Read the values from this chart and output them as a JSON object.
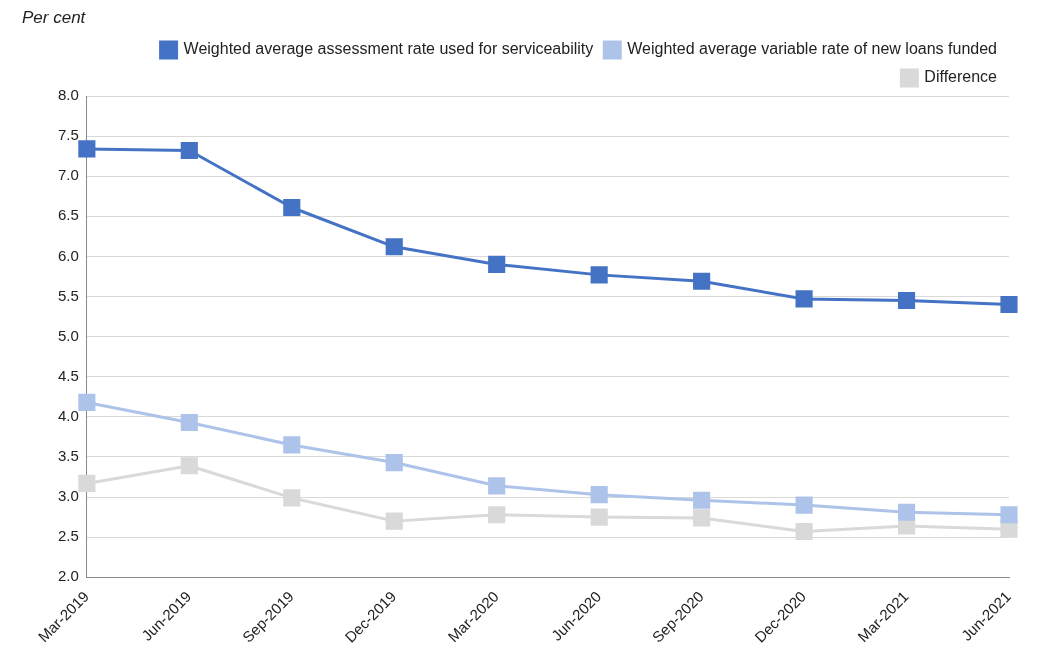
{
  "chart_data": {
    "type": "line",
    "ylabel": "Per cent",
    "categories": [
      "Mar-2019",
      "Jun-2019",
      "Sep-2019",
      "Dec-2019",
      "Mar-2020",
      "Jun-2020",
      "Sep-2020",
      "Dec-2020",
      "Mar-2021",
      "Jun-2021"
    ],
    "series": [
      {
        "name": "Weighted average assessment rate used for serviceability",
        "color": "#4472c4",
        "values": [
          7.34,
          7.32,
          6.61,
          6.12,
          5.9,
          5.77,
          5.69,
          5.47,
          5.45,
          5.4
        ]
      },
      {
        "name": "Weighted average variable rate of new loans funded",
        "color": "#adc3ea",
        "values": [
          4.18,
          3.93,
          3.65,
          3.43,
          3.14,
          3.03,
          2.96,
          2.9,
          2.81,
          2.78
        ]
      },
      {
        "name": "Difference",
        "color": "#d9d9d9",
        "values": [
          3.17,
          3.39,
          2.99,
          2.7,
          2.78,
          2.75,
          2.74,
          2.57,
          2.64,
          2.6
        ]
      }
    ],
    "ylim": [
      2,
      8
    ],
    "yticks": [
      {
        "value": 2,
        "label": "2.0"
      },
      {
        "value": 2.5,
        "label": "2.5"
      },
      {
        "value": 3,
        "label": "3.0"
      },
      {
        "value": 3.5,
        "label": "3.5"
      },
      {
        "value": 4,
        "label": "4.0"
      },
      {
        "value": 4.5,
        "label": "4.5"
      },
      {
        "value": 5,
        "label": "5.0"
      },
      {
        "value": 5.5,
        "label": "5.5"
      },
      {
        "value": 6,
        "label": "6.0"
      },
      {
        "value": 6.5,
        "label": "6.5"
      },
      {
        "value": 7,
        "label": "7.0"
      },
      {
        "value": 7.5,
        "label": "7.5"
      },
      {
        "value": 8,
        "label": "8.0"
      }
    ],
    "grid": "y",
    "legend": "top right",
    "marker": "square",
    "line_style": "solid"
  }
}
